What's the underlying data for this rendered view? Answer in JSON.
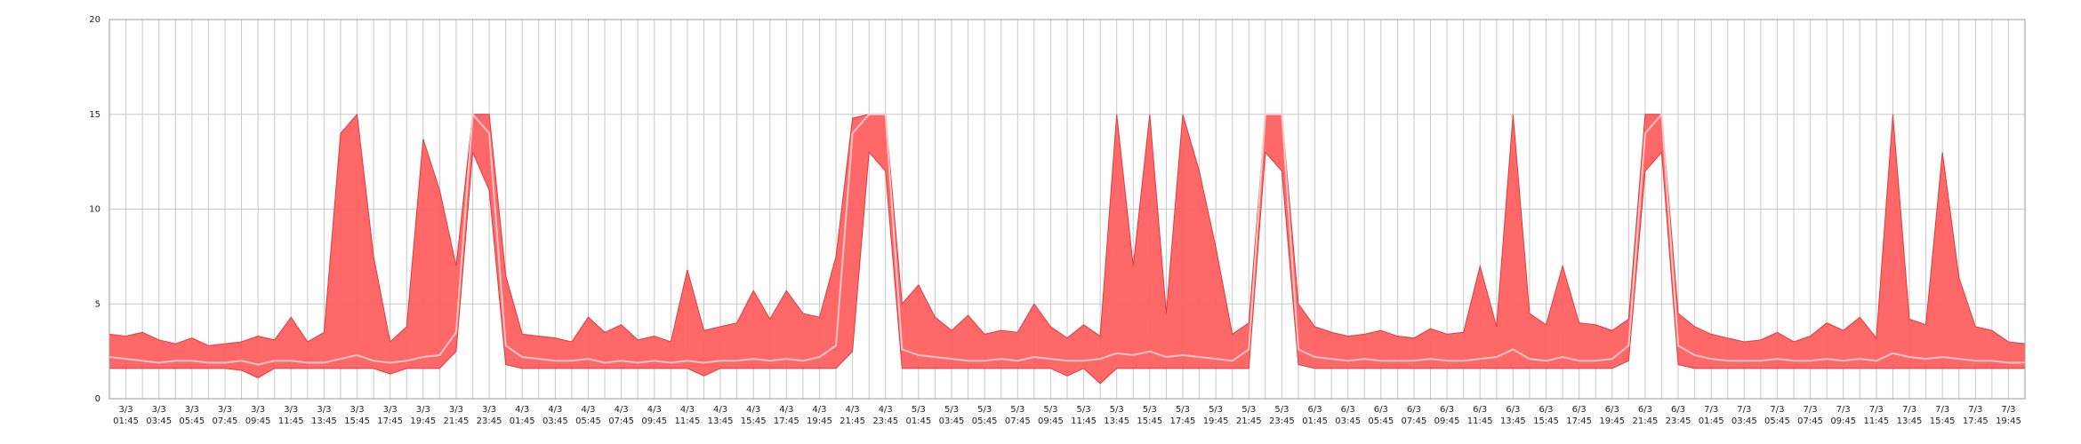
{
  "chart_data": {
    "type": "band",
    "categories": [
      null,
      "3/3\n01:45",
      null,
      "3/3\n03:45",
      null,
      "3/3\n05:45",
      null,
      "3/3\n07:45",
      null,
      "3/3\n09:45",
      null,
      "3/3\n11:45",
      null,
      "3/3\n13:45",
      null,
      "3/3\n15:45",
      null,
      "3/3\n17:45",
      null,
      "3/3\n19:45",
      null,
      "3/3\n21:45",
      null,
      "3/3\n23:45",
      null,
      "4/3\n01:45",
      null,
      "4/3\n03:45",
      null,
      "4/3\n05:45",
      null,
      "4/3\n07:45",
      null,
      "4/3\n09:45",
      null,
      "4/3\n11:45",
      null,
      "4/3\n13:45",
      null,
      "4/3\n15:45",
      null,
      "4/3\n17:45",
      null,
      "4/3\n19:45",
      null,
      "4/3\n21:45",
      null,
      "4/3\n23:45",
      null,
      "5/3\n01:45",
      null,
      "5/3\n03:45",
      null,
      "5/3\n05:45",
      null,
      "5/3\n07:45",
      null,
      "5/3\n09:45",
      null,
      "5/3\n11:45",
      null,
      "5/3\n13:45",
      null,
      "5/3\n15:45",
      null,
      "5/3\n17:45",
      null,
      "5/3\n19:45",
      null,
      "5/3\n21:45",
      null,
      "5/3\n23:45",
      null,
      "6/3\n01:45",
      null,
      "6/3\n03:45",
      null,
      "6/3\n05:45",
      null,
      "6/3\n07:45",
      null,
      "6/3\n09:45",
      null,
      "6/3\n11:45",
      null,
      "6/3\n13:45",
      null,
      "6/3\n15:45",
      null,
      "6/3\n17:45",
      null,
      "6/3\n19:45",
      null,
      "6/3\n21:45",
      null,
      "6/3\n23:45",
      null,
      "7/3\n01:45",
      null,
      "7/3\n03:45",
      null,
      "7/3\n05:45",
      null,
      "7/3\n07:45",
      null,
      "7/3\n09:45",
      null,
      "7/3\n11:45",
      null,
      "7/3\n13:45",
      null,
      "7/3\n15:45",
      null,
      "7/3\n17:45",
      null,
      "7/3\n19:45",
      null
    ],
    "band": {
      "color": "#ff6060",
      "edge_color": "#e23a3a",
      "upper": [
        3.4,
        3.3,
        3.5,
        3.1,
        2.9,
        3.2,
        2.8,
        2.9,
        3.0,
        3.3,
        3.1,
        4.3,
        3.0,
        3.5,
        14.0,
        15,
        7.5,
        3.0,
        3.8,
        13.7,
        11.0,
        7.0,
        15,
        15,
        6.5,
        3.4,
        3.3,
        3.2,
        3.0,
        4.3,
        3.5,
        3.9,
        3.1,
        3.3,
        3.0,
        6.8,
        3.6,
        3.8,
        4.0,
        5.7,
        4.2,
        5.7,
        4.5,
        4.3,
        7.5,
        14.8,
        15,
        15,
        5.0,
        6.0,
        4.3,
        3.6,
        4.4,
        3.4,
        3.6,
        3.5,
        5.0,
        3.8,
        3.2,
        3.9,
        3.3,
        15,
        7.0,
        15,
        4.5,
        15,
        12,
        8.0,
        3.4,
        4.0,
        15,
        15,
        5.0,
        3.8,
        3.5,
        3.3,
        3.4,
        3.6,
        3.3,
        3.2,
        3.7,
        3.4,
        3.5,
        7.0,
        3.8,
        15,
        4.5,
        3.9,
        7.0,
        4.0,
        3.9,
        3.6,
        4.2,
        15,
        15,
        4.5,
        3.8,
        3.4,
        3.2,
        3.0,
        3.1,
        3.5,
        3.0,
        3.3,
        4.0,
        3.6,
        4.3,
        3.2,
        15,
        4.2,
        3.9,
        13.0,
        6.4,
        3.8,
        3.6,
        3.0,
        2.9
      ],
      "lower": [
        1.6,
        1.6,
        1.6,
        1.6,
        1.6,
        1.6,
        1.6,
        1.6,
        1.5,
        1.1,
        1.6,
        1.6,
        1.6,
        1.6,
        1.6,
        1.6,
        1.6,
        1.3,
        1.6,
        1.6,
        1.6,
        2.5,
        13,
        11,
        1.8,
        1.6,
        1.6,
        1.6,
        1.6,
        1.6,
        1.6,
        1.6,
        1.6,
        1.6,
        1.6,
        1.6,
        1.2,
        1.6,
        1.6,
        1.6,
        1.6,
        1.6,
        1.6,
        1.6,
        1.6,
        2.5,
        13,
        12,
        1.6,
        1.6,
        1.6,
        1.6,
        1.6,
        1.6,
        1.6,
        1.6,
        1.6,
        1.6,
        1.2,
        1.6,
        0.8,
        1.6,
        1.6,
        1.6,
        1.6,
        1.6,
        1.6,
        1.6,
        1.6,
        1.6,
        13,
        12,
        1.8,
        1.6,
        1.6,
        1.6,
        1.6,
        1.6,
        1.6,
        1.6,
        1.6,
        1.6,
        1.6,
        1.6,
        1.6,
        1.6,
        1.6,
        1.6,
        1.6,
        1.6,
        1.6,
        1.6,
        2.0,
        12,
        13,
        1.8,
        1.6,
        1.6,
        1.6,
        1.6,
        1.6,
        1.6,
        1.6,
        1.6,
        1.6,
        1.6,
        1.6,
        1.6,
        1.6,
        1.6,
        1.6,
        1.6,
        1.6,
        1.6,
        1.6,
        1.6,
        1.6
      ]
    },
    "series": [
      {
        "color": "#ffc4c4",
        "values": [
          2.2,
          2.1,
          2.0,
          1.9,
          2.0,
          2.0,
          1.9,
          1.9,
          2.0,
          1.8,
          2.0,
          2.0,
          1.9,
          1.9,
          2.1,
          2.3,
          2.0,
          1.9,
          2.0,
          2.2,
          2.3,
          3.5,
          15,
          14,
          2.8,
          2.2,
          2.1,
          2.0,
          2.0,
          2.1,
          1.9,
          2.0,
          1.9,
          2.0,
          1.9,
          2.0,
          1.9,
          2.0,
          2.0,
          2.1,
          2.0,
          2.1,
          2.0,
          2.2,
          2.8,
          14,
          15,
          15,
          2.6,
          2.3,
          2.2,
          2.1,
          2.0,
          2.0,
          2.1,
          2.0,
          2.2,
          2.1,
          2.0,
          2.0,
          2.1,
          2.4,
          2.3,
          2.5,
          2.2,
          2.3,
          2.2,
          2.1,
          2.0,
          2.6,
          15,
          15,
          2.6,
          2.2,
          2.1,
          2.0,
          2.1,
          2.0,
          2.0,
          2.0,
          2.1,
          2.0,
          2.0,
          2.1,
          2.2,
          2.6,
          2.1,
          2.0,
          2.2,
          2.0,
          2.0,
          2.1,
          2.8,
          14,
          15,
          2.8,
          2.3,
          2.1,
          2.0,
          2.0,
          2.0,
          2.1,
          2.0,
          2.0,
          2.1,
          2.0,
          2.1,
          2.0,
          2.4,
          2.2,
          2.1,
          2.2,
          2.1,
          2.0,
          2.0,
          1.9,
          1.9
        ]
      }
    ],
    "ylim": [
      0,
      20
    ],
    "yticks": [
      0,
      5,
      10,
      15,
      20
    ],
    "grid": true
  }
}
